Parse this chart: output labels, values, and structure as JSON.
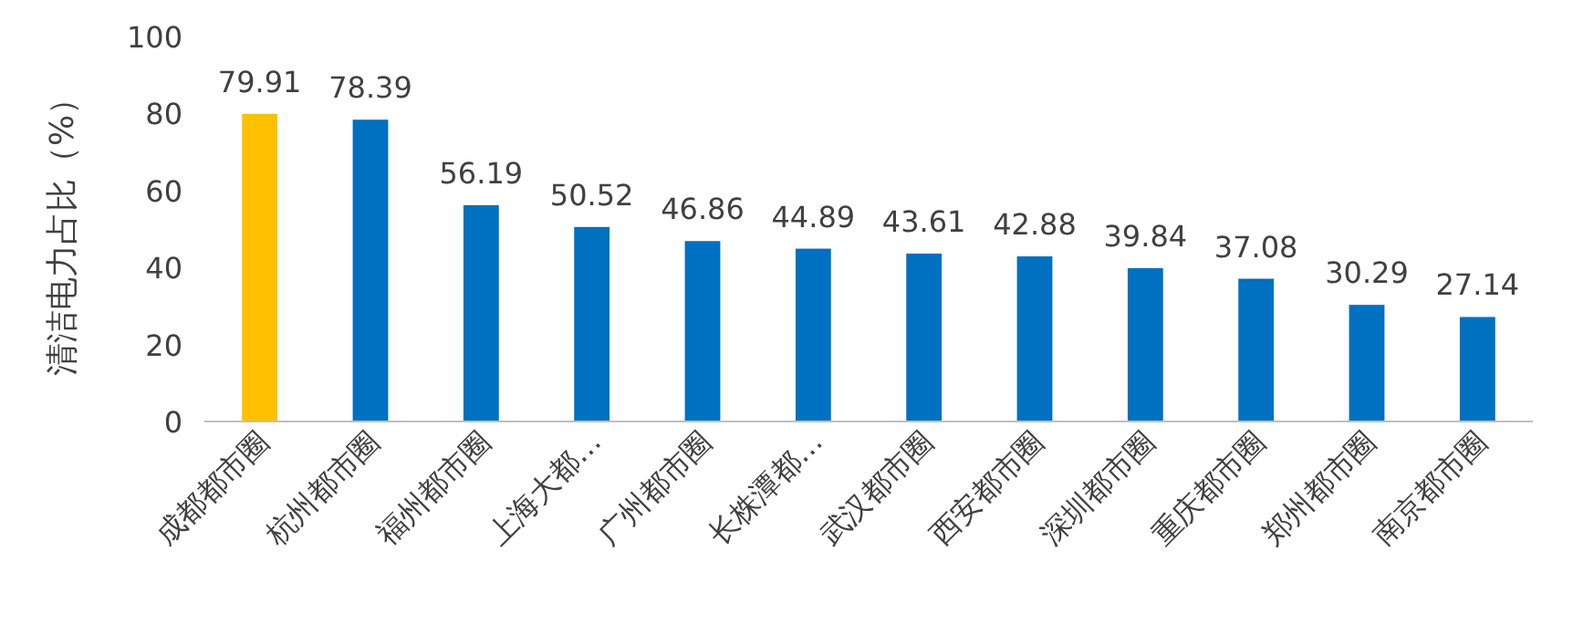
{
  "chart_data": {
    "type": "bar",
    "ylabel": "清洁电力占比（%）",
    "categories": [
      "成都都市圈",
      "杭州都市圈",
      "福州都市圈",
      "上海大都…",
      "广州都市圈",
      "长株潭都…",
      "武汉都市圈",
      "西安都市圈",
      "深圳都市圈",
      "重庆都市圈",
      "郑州都市圈",
      "南京都市圈"
    ],
    "values": [
      79.91,
      78.39,
      56.19,
      50.52,
      46.86,
      44.89,
      43.61,
      42.88,
      39.84,
      37.08,
      30.29,
      27.14
    ],
    "colors": [
      "#ffc000",
      "#0070c0",
      "#0070c0",
      "#0070c0",
      "#0070c0",
      "#0070c0",
      "#0070c0",
      "#0070c0",
      "#0070c0",
      "#0070c0",
      "#0070c0",
      "#0070c0"
    ],
    "ylim": [
      0,
      100
    ],
    "yticks": [
      0,
      20,
      40,
      60,
      80,
      100
    ],
    "data_labels": true,
    "grid": false
  }
}
